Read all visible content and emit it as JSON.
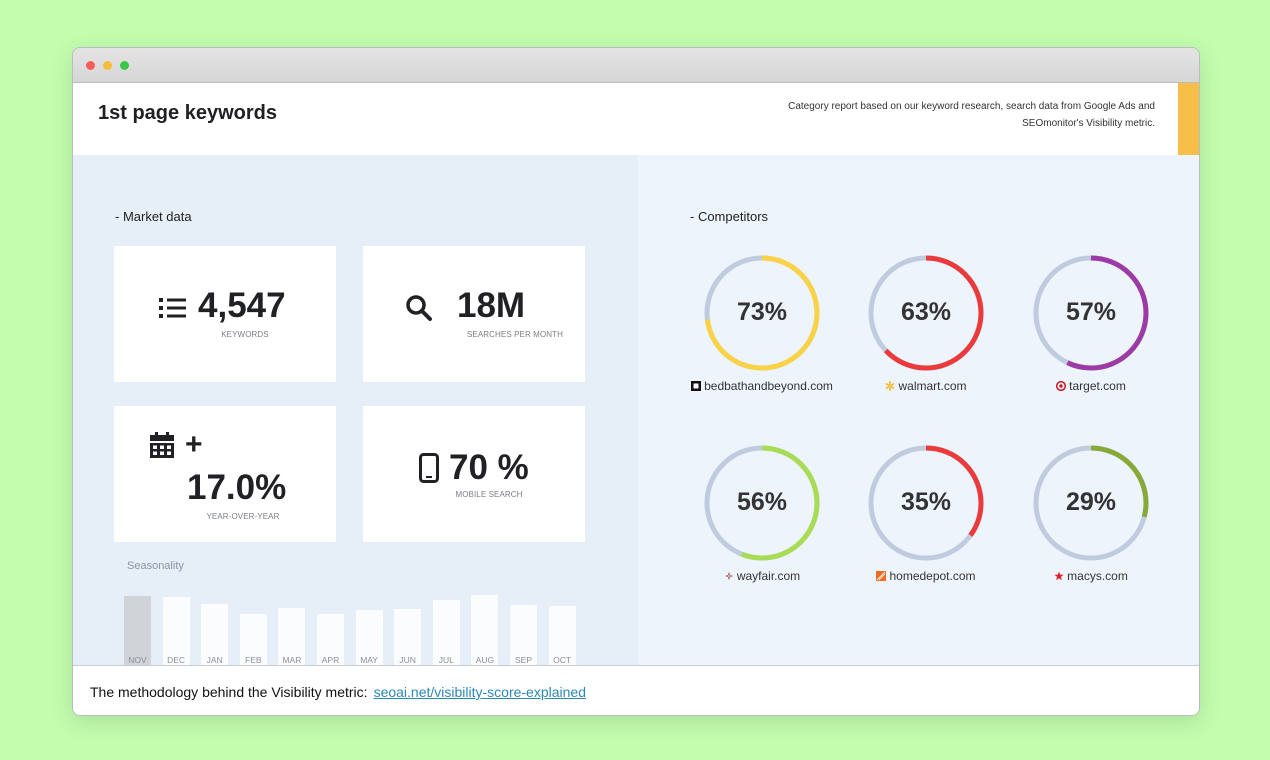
{
  "header": {
    "title": "1st page keywords",
    "description_line1": "Category report based on our keyword research, search data from Google Ads and",
    "description_line2": "SEOmonitor's Visibility metric."
  },
  "market": {
    "section_label": "- Market data",
    "keywords": {
      "value": "4,547",
      "label": "KEYWORDS",
      "icon": "list-icon"
    },
    "searches": {
      "value": "18M",
      "label": "SEARCHES PER MONTH",
      "icon": "search-icon"
    },
    "yoy": {
      "sign": "+",
      "value": "17.0%",
      "label": "YEAR-OVER-YEAR",
      "icon": "calendar-icon"
    },
    "mobile": {
      "value": "70 %",
      "label": "MOBILE SEARCH",
      "icon": "mobile-icon"
    }
  },
  "seasonality": {
    "label": "Seasonality",
    "months": [
      "NOV",
      "DEC",
      "JAN",
      "FEB",
      "MAR",
      "APR",
      "MAY",
      "JUN",
      "JUL",
      "AUG",
      "SEP",
      "OCT"
    ],
    "values": [
      66,
      65,
      58,
      49,
      55,
      49,
      53,
      54,
      62,
      67,
      57,
      56
    ],
    "highlight_index": 0
  },
  "competitors": {
    "section_label": "- Competitors",
    "items": [
      {
        "domain": "bedbathandbeyond.com",
        "percent": 73,
        "label": "73%",
        "color": "#f9d245",
        "icon": "bedbath-favicon-icon"
      },
      {
        "domain": "walmart.com",
        "percent": 63,
        "label": "63%",
        "color": "#ea3a3c",
        "icon": "walmart-spark-icon"
      },
      {
        "domain": "target.com",
        "percent": 57,
        "label": "57%",
        "color": "#9c3aa6",
        "icon": "target-bullseye-icon"
      },
      {
        "domain": "wayfair.com",
        "percent": 56,
        "label": "56%",
        "color": "#a8dc55",
        "icon": "wayfair-pinwheel-icon"
      },
      {
        "domain": "homedepot.com",
        "percent": 35,
        "label": "35%",
        "color": "#ea3a3c",
        "icon": "homedepot-logo-icon"
      },
      {
        "domain": "macys.com",
        "percent": 29,
        "label": "29%",
        "color": "#88a83a",
        "icon": "macys-star-icon"
      }
    ],
    "track_color": "#c0cbe0"
  },
  "footer": {
    "text": "The methodology behind the Visibility metric:",
    "link": "seoai.net/visibility-score-explained"
  }
}
